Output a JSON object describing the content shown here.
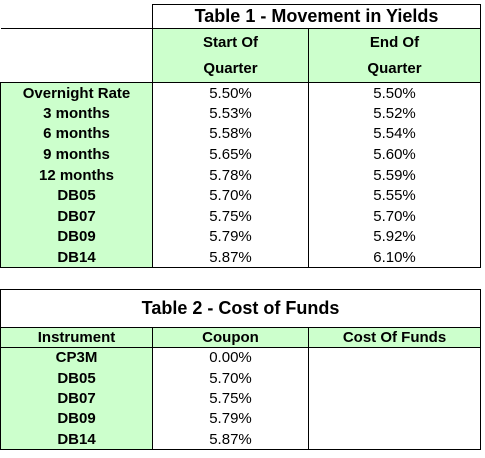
{
  "table1": {
    "title": "Table 1 - Movement in Yields",
    "headers": [
      "Start Of",
      "Quarter",
      "End Of",
      "Quarter"
    ],
    "rows": [
      {
        "label": "Overnight Rate",
        "start": "5.50%",
        "end": "5.50%"
      },
      {
        "label": "3 months",
        "start": "5.53%",
        "end": "5.52%"
      },
      {
        "label": "6 months",
        "start": "5.58%",
        "end": "5.54%"
      },
      {
        "label": "9 months",
        "start": "5.65%",
        "end": "5.60%"
      },
      {
        "label": "12 months",
        "start": "5.78%",
        "end": "5.59%"
      },
      {
        "label": "DB05",
        "start": "5.70%",
        "end": "5.55%"
      },
      {
        "label": "DB07",
        "start": "5.75%",
        "end": "5.70%"
      },
      {
        "label": "DB09",
        "start": "5.79%",
        "end": "5.92%"
      },
      {
        "label": "DB14",
        "start": "5.87%",
        "end": "6.10%"
      }
    ]
  },
  "table2": {
    "title": "Table 2 - Cost of Funds",
    "headers": [
      "Instrument",
      "Coupon",
      "Cost Of Funds"
    ],
    "rows": [
      {
        "label": "CP3M",
        "coupon": "0.00%",
        "cost": ""
      },
      {
        "label": "DB05",
        "coupon": "5.70%",
        "cost": ""
      },
      {
        "label": "DB07",
        "coupon": "5.75%",
        "cost": ""
      },
      {
        "label": "DB09",
        "coupon": "5.79%",
        "cost": ""
      },
      {
        "label": "DB14",
        "coupon": "5.87%",
        "cost": ""
      }
    ]
  },
  "colors": {
    "header_fill": "#ccffcc",
    "border": "#000000"
  }
}
